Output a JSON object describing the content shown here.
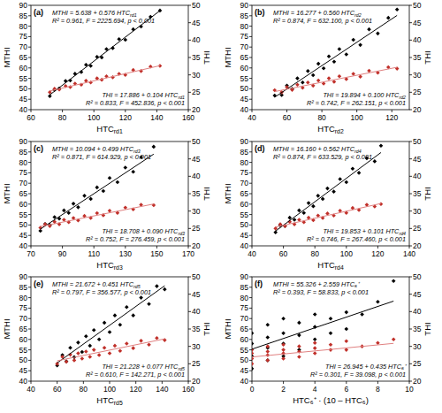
{
  "chart_data": [
    {
      "type": "scatter",
      "title": "(a)",
      "x_label": "HTCrd1",
      "xlim": [
        60,
        160
      ],
      "xticks": [
        60,
        80,
        100,
        120,
        140,
        160
      ],
      "ylim": [
        40,
        90
      ],
      "yticks": [
        40,
        45,
        50,
        55,
        60,
        65,
        70,
        75,
        80,
        85,
        90
      ],
      "y2lim": [
        20,
        50
      ],
      "y2ticks": [
        20,
        25,
        30,
        35,
        40,
        45,
        50
      ],
      "annotations": [
        "MTHI = 5.638 + 0.576 HTCrd1",
        "R² = 0.961, F = 2225.694, p < 0.001",
        "THI = 17.886 + 0.104 HTCrd1",
        "R² = 0.833, F = 452.836, p < 0.001"
      ],
      "series": [
        {
          "name": "MTHI",
          "color": "#000000",
          "marker": "diamond",
          "x": [
            72,
            75,
            78,
            82,
            85,
            88,
            92,
            95,
            98,
            102,
            105,
            108,
            112,
            116,
            120,
            125,
            130,
            136,
            142
          ],
          "values": [
            46.5,
            49.5,
            50.2,
            53.8,
            54.0,
            57.2,
            58.0,
            61.5,
            61.0,
            65.3,
            65.0,
            69.0,
            69.5,
            73.8,
            73.5,
            78.5,
            79.8,
            84.5,
            87.5
          ]
        },
        {
          "name": "THI",
          "color": "#c0302a",
          "marker": "diamond",
          "axis": "y2",
          "x": [
            72,
            75,
            78,
            82,
            85,
            88,
            92,
            95,
            98,
            102,
            105,
            108,
            112,
            116,
            120,
            125,
            130,
            136,
            142
          ],
          "values": [
            25.0,
            26.0,
            25.8,
            26.8,
            26.5,
            27.5,
            27.2,
            28.3,
            27.8,
            29.0,
            28.6,
            29.6,
            29.3,
            30.3,
            30.0,
            31.4,
            31.1,
            32.4,
            32.6
          ]
        },
        {
          "type": "line",
          "color": "#000000",
          "x": [
            72,
            142
          ],
          "values": [
            47.11,
            87.43
          ]
        },
        {
          "type": "line",
          "color": "#e08080",
          "axis": "y2",
          "x": [
            72,
            142
          ],
          "values": [
            25.37,
            32.65
          ]
        }
      ]
    },
    {
      "type": "scatter",
      "title": "(b)",
      "x_label": "HTCrd2",
      "xlim": [
        40,
        130
      ],
      "xticks": [
        40,
        60,
        80,
        100,
        120
      ],
      "ylim": [
        40,
        90
      ],
      "yticks": [
        40,
        45,
        50,
        55,
        60,
        65,
        70,
        75,
        80,
        85,
        90
      ],
      "y2lim": [
        20,
        50
      ],
      "y2ticks": [
        20,
        25,
        30,
        35,
        40,
        45,
        50
      ],
      "annotations": [
        "MTHI = 16.277 + 0.560 HTCrd2",
        "R² = 0.874, F = 632.100, p < 0.001",
        "THI = 19.894 + 0.100 HTCrd2",
        "R² = 0.742, F = 262.151, p < 0.001"
      ],
      "series": [
        {
          "name": "MTHI",
          "color": "#000000",
          "marker": "diamond",
          "x": [
            53,
            57,
            60,
            63,
            66,
            69,
            72,
            75,
            78,
            81,
            84,
            87,
            90,
            94,
            98,
            102,
            107,
            112,
            118,
            123
          ],
          "values": [
            46.8,
            47.0,
            51.5,
            50.0,
            55.0,
            53.0,
            58.5,
            56.5,
            62.0,
            59.8,
            65.5,
            63.0,
            69.0,
            66.5,
            73.5,
            71.0,
            78.5,
            76.5,
            84.0,
            88.0
          ]
        },
        {
          "name": "THI",
          "color": "#c0302a",
          "marker": "diamond",
          "axis": "y2",
          "x": [
            53,
            57,
            60,
            63,
            66,
            69,
            72,
            75,
            78,
            81,
            84,
            87,
            90,
            94,
            98,
            102,
            107,
            112,
            118,
            123
          ],
          "values": [
            25.6,
            25.0,
            26.5,
            25.7,
            27.2,
            26.3,
            27.8,
            26.9,
            28.4,
            27.5,
            29.0,
            28.0,
            29.6,
            28.8,
            30.3,
            29.5,
            31.2,
            30.6,
            32.2,
            31.8
          ]
        },
        {
          "type": "line",
          "color": "#000000",
          "x": [
            53,
            123
          ],
          "values": [
            45.96,
            85.16
          ]
        },
        {
          "type": "line",
          "color": "#e08080",
          "axis": "y2",
          "x": [
            53,
            123
          ],
          "values": [
            25.19,
            32.19
          ]
        }
      ]
    },
    {
      "type": "scatter",
      "title": "(c)",
      "x_label": "HTCrd3",
      "xlim": [
        70,
        170
      ],
      "xticks": [
        70,
        90,
        110,
        130,
        150,
        170
      ],
      "ylim": [
        40,
        90
      ],
      "yticks": [
        40,
        45,
        50,
        55,
        60,
        65,
        70,
        75,
        80,
        85,
        90
      ],
      "y2lim": [
        20,
        50
      ],
      "y2ticks": [
        20,
        25,
        30,
        35,
        40,
        45,
        50
      ],
      "annotations": [
        "MTHI = 10.094 + 0.499 HTCrd3",
        "R² = 0.871, F = 614.929, p < 0.001",
        "THI = 18.708 + 0.090 HTCrd3",
        "R² = 0.752, F = 276.459, p < 0.001"
      ],
      "series": [
        {
          "name": "MTHI",
          "color": "#000000",
          "marker": "diamond",
          "x": [
            76,
            79,
            82,
            85,
            88,
            91,
            94,
            97,
            100,
            104,
            108,
            112,
            116,
            120,
            125,
            130,
            135,
            140,
            148
          ],
          "values": [
            47.2,
            50.5,
            50.0,
            53.8,
            53.0,
            57.0,
            55.8,
            60.2,
            58.5,
            64.0,
            62.5,
            68.0,
            66.3,
            72.5,
            70.5,
            77.5,
            75.5,
            82.5,
            87.5
          ]
        },
        {
          "name": "THI",
          "color": "#c0302a",
          "marker": "diamond",
          "axis": "y2",
          "x": [
            76,
            79,
            82,
            85,
            88,
            91,
            94,
            97,
            100,
            104,
            108,
            112,
            116,
            120,
            125,
            130,
            135,
            140,
            148
          ],
          "values": [
            25.2,
            26.2,
            25.7,
            26.9,
            26.2,
            27.5,
            26.8,
            28.0,
            27.3,
            28.6,
            28.0,
            29.4,
            28.8,
            30.1,
            29.5,
            31.0,
            30.5,
            31.8,
            31.7
          ]
        },
        {
          "type": "line",
          "color": "#000000",
          "x": [
            76,
            148
          ],
          "values": [
            48.02,
            83.95
          ]
        },
        {
          "type": "line",
          "color": "#e08080",
          "axis": "y2",
          "x": [
            76,
            148
          ],
          "values": [
            25.55,
            32.03
          ]
        }
      ]
    },
    {
      "type": "scatter",
      "title": "(d)",
      "x_label": "HTCrd4",
      "xlim": [
        40,
        140
      ],
      "xticks": [
        40,
        60,
        80,
        100,
        120,
        140
      ],
      "ylim": [
        40,
        90
      ],
      "yticks": [
        40,
        45,
        50,
        55,
        60,
        65,
        70,
        75,
        80,
        85,
        90
      ],
      "y2lim": [
        20,
        50
      ],
      "y2ticks": [
        20,
        25,
        30,
        35,
        40,
        45,
        50
      ],
      "annotations": [
        "MTHI = 16.160 + 0.562 HTCrd4",
        "R² = 0.874, F = 633.529, p < 0.001",
        "THI = 19.853 + 0.101 HTCrd4",
        "R² = 0.746, F = 267.460, p < 0.001"
      ],
      "series": [
        {
          "name": "MTHI",
          "color": "#000000",
          "marker": "diamond",
          "x": [
            55,
            58,
            61,
            64,
            67,
            70,
            73,
            76,
            79,
            82,
            85,
            88,
            92,
            96,
            100,
            104,
            108,
            113,
            118,
            122
          ],
          "values": [
            46.5,
            49.8,
            49.5,
            53.5,
            52.5,
            57.0,
            55.8,
            60.5,
            59.0,
            64.0,
            62.5,
            67.5,
            66.0,
            72.0,
            70.5,
            77.0,
            75.0,
            82.0,
            80.5,
            88.0
          ]
        },
        {
          "name": "THI",
          "color": "#c0302a",
          "marker": "diamond",
          "axis": "y2",
          "x": [
            55,
            58,
            61,
            64,
            67,
            70,
            73,
            76,
            79,
            82,
            85,
            88,
            92,
            96,
            100,
            104,
            108,
            113,
            118,
            122
          ],
          "values": [
            25.0,
            26.2,
            25.7,
            26.9,
            26.2,
            27.5,
            26.8,
            28.1,
            27.4,
            28.7,
            28.0,
            29.3,
            28.7,
            30.1,
            29.5,
            30.9,
            30.3,
            31.8,
            31.3,
            32.0
          ]
        },
        {
          "type": "line",
          "color": "#000000",
          "x": [
            55,
            122
          ],
          "values": [
            47.07,
            84.72
          ]
        },
        {
          "type": "line",
          "color": "#e08080",
          "axis": "y2",
          "x": [
            55,
            122
          ],
          "values": [
            25.41,
            32.18
          ]
        }
      ]
    },
    {
      "type": "scatter",
      "title": "(e)",
      "x_label": "HTCrd5",
      "xlim": [
        40,
        160
      ],
      "xticks": [
        40,
        60,
        80,
        100,
        120,
        140,
        160
      ],
      "ylim": [
        40,
        90
      ],
      "yticks": [
        40,
        45,
        50,
        55,
        60,
        65,
        70,
        75,
        80,
        85,
        90
      ],
      "y2lim": [
        20,
        50
      ],
      "y2ticks": [
        20,
        25,
        30,
        35,
        40,
        45,
        50
      ],
      "annotations": [
        "MTHI = 21.672 + 0.451 HTCrd5",
        "R² = 0.797, F = 356.577, p < 0.001",
        "THI = 21.228 + 0.077 HTCrd5",
        "R² = 0.610, F = 142.271, p < 0.001"
      ],
      "series": [
        {
          "name": "MTHI",
          "color": "#000000",
          "marker": "diamond",
          "x": [
            60,
            64,
            67,
            70,
            73,
            76,
            79,
            82,
            85,
            88,
            92,
            96,
            100,
            104,
            108,
            113,
            118,
            124,
            130,
            136,
            142
          ],
          "values": [
            47.5,
            52.5,
            49.5,
            56.0,
            51.5,
            58.5,
            54.0,
            61.5,
            57.0,
            64.5,
            60.0,
            68.0,
            63.5,
            71.5,
            67.0,
            75.5,
            71.5,
            80.0,
            77.0,
            85.5,
            84.0
          ]
        },
        {
          "name": "THI",
          "color": "#c0302a",
          "marker": "diamond",
          "axis": "y2",
          "x": [
            60,
            64,
            67,
            70,
            73,
            76,
            79,
            82,
            85,
            88,
            92,
            96,
            100,
            104,
            108,
            113,
            118,
            124,
            130,
            136,
            142
          ],
          "values": [
            25.0,
            27.0,
            25.6,
            27.6,
            26.0,
            28.0,
            26.5,
            28.5,
            27.0,
            29.0,
            27.5,
            29.6,
            28.0,
            30.2,
            28.7,
            30.8,
            29.5,
            31.6,
            30.5,
            32.4,
            31.8
          ]
        },
        {
          "type": "line",
          "color": "#000000",
          "x": [
            60,
            142
          ],
          "values": [
            48.73,
            85.71
          ]
        },
        {
          "type": "line",
          "color": "#e08080",
          "axis": "y2",
          "x": [
            60,
            142
          ],
          "values": [
            25.85,
            32.16
          ]
        }
      ]
    },
    {
      "type": "scatter",
      "title": "(f)",
      "x_label": "HTC₆⁺ · (10 – HTC₆)",
      "xlim": [
        0,
        10
      ],
      "xticks": [
        0,
        2,
        4,
        6,
        8,
        10
      ],
      "ylim": [
        40,
        90
      ],
      "yticks": [
        40,
        45,
        50,
        55,
        60,
        65,
        70,
        75,
        80,
        85,
        90
      ],
      "y2lim": [
        20,
        50
      ],
      "y2ticks": [
        20,
        25,
        30,
        35,
        40,
        45,
        50
      ],
      "annotations": [
        "MTHI = 55.326 + 2.559 HTC₆⁺",
        "R² = 0.393, F = 58.833, p < 0.001",
        "THI = 26.945 + 0.435 HTC₆⁺",
        "R² = 0.301, F = 39.098, p < 0.001"
      ],
      "series": [
        {
          "name": "MTHI",
          "color": "#000000",
          "marker": "diamond",
          "x": [
            0,
            0,
            0,
            0,
            1,
            1,
            1,
            1,
            2,
            2,
            2,
            2,
            3,
            3,
            3,
            4,
            4,
            4,
            5,
            5,
            6,
            6,
            7,
            8,
            9
          ],
          "values": [
            46,
            52,
            58,
            63,
            50,
            56,
            61,
            67,
            52,
            58,
            63,
            70,
            55,
            62,
            68,
            60,
            66,
            72,
            63,
            70,
            65,
            73,
            72,
            78,
            88
          ]
        },
        {
          "name": "THI",
          "color": "#c0302a",
          "marker": "diamond",
          "axis": "y2",
          "x": [
            0,
            0,
            0,
            0,
            1,
            1,
            1,
            1,
            2,
            2,
            2,
            2,
            3,
            3,
            3,
            4,
            4,
            4,
            5,
            5,
            6,
            6,
            7,
            8,
            9
          ],
          "values": [
            25,
            26.5,
            28,
            29,
            26,
            27.5,
            28.5,
            30,
            26.5,
            28,
            29,
            30.5,
            27,
            28.5,
            30,
            28,
            29.5,
            31,
            29,
            30.5,
            29,
            31.5,
            30,
            31,
            32
          ]
        },
        {
          "type": "line",
          "color": "#000000",
          "x": [
            0,
            9
          ],
          "values": [
            55.33,
            78.36
          ]
        },
        {
          "type": "line",
          "color": "#e08080",
          "axis": "y2",
          "x": [
            0,
            9
          ],
          "values": [
            26.95,
            30.86
          ]
        }
      ]
    }
  ]
}
